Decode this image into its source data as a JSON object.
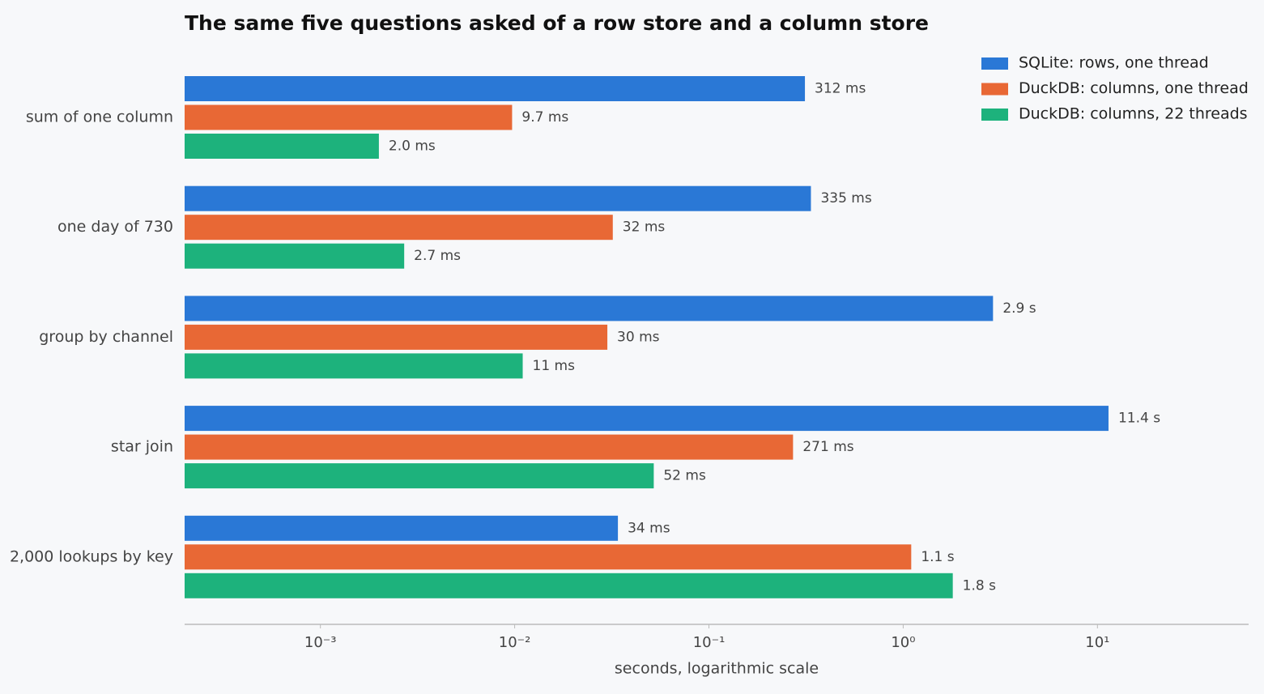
{
  "chart_data": {
    "type": "bar",
    "orientation": "horizontal",
    "title": "The same five questions asked of a row store and a column store",
    "categories": [
      "sum of one column",
      "one day of 730",
      "group by channel",
      "star join",
      "2,000 lookups by key"
    ],
    "series": [
      {
        "name": "SQLite: rows, one thread",
        "color": "#2a78d6",
        "values": [
          0.312,
          0.335,
          2.9,
          11.4,
          0.034
        ],
        "value_labels": [
          "312 ms",
          "335 ms",
          "2.9 s",
          "11.4 s",
          "34 ms"
        ]
      },
      {
        "name": "DuckDB: columns, one thread",
        "color": "#e86835",
        "values": [
          0.0097,
          0.032,
          0.03,
          0.271,
          1.1
        ],
        "value_labels": [
          "9.7 ms",
          "32 ms",
          "30 ms",
          "271 ms",
          "1.1 s"
        ]
      },
      {
        "name": "DuckDB: columns, 22 threads",
        "color": "#1db27c",
        "values": [
          0.002,
          0.0027,
          0.011,
          0.052,
          1.8
        ],
        "value_labels": [
          "2.0 ms",
          "2.7 ms",
          "11 ms",
          "52 ms",
          "1.8 s"
        ]
      }
    ],
    "xlabel": "seconds, logarithmic scale",
    "xscale": "log",
    "xlim": [
      0.0002,
      60
    ],
    "xticks": [
      {
        "value": 0.001,
        "label": "10⁻³"
      },
      {
        "value": 0.01,
        "label": "10⁻²"
      },
      {
        "value": 0.1,
        "label": "10⁻¹"
      },
      {
        "value": 1,
        "label": "10⁰"
      },
      {
        "value": 10,
        "label": "10¹"
      }
    ],
    "grid": false,
    "legend": "top-right"
  }
}
